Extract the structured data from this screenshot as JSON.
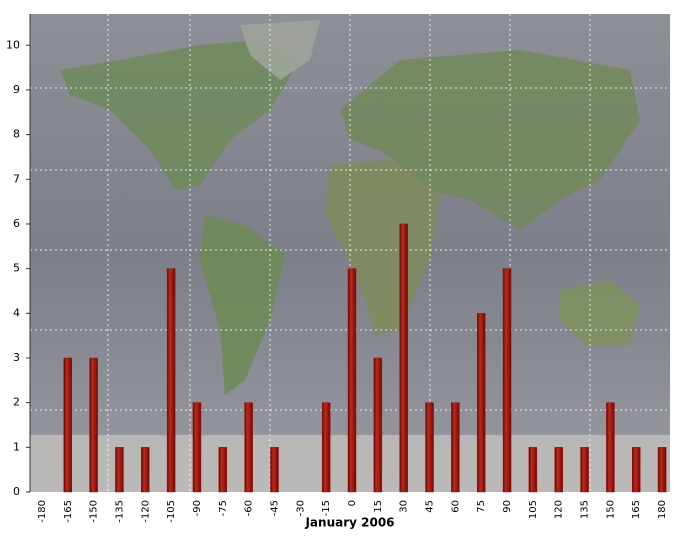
{
  "chart_data": {
    "type": "bar",
    "x_label": "January 2006",
    "categories": [
      "-180",
      "-165",
      "-150",
      "-135",
      "-120",
      "-105",
      "-90",
      "-75",
      "-60",
      "-45",
      "-30",
      "-15",
      "0",
      "15",
      "30",
      "45",
      "60",
      "75",
      "90",
      "105",
      "120",
      "135",
      "150",
      "165",
      "180"
    ],
    "values": [
      0,
      3,
      3,
      1,
      1,
      5,
      2,
      1,
      2,
      1,
      0,
      2,
      5,
      3,
      6,
      2,
      2,
      4,
      5,
      1,
      1,
      1,
      2,
      1,
      1
    ],
    "color": "#9a120a",
    "ylim": [
      0,
      10.7
    ],
    "yticks": [
      0,
      1,
      2,
      3,
      4,
      5,
      6,
      7,
      8,
      9,
      10
    ],
    "grid": false
  }
}
